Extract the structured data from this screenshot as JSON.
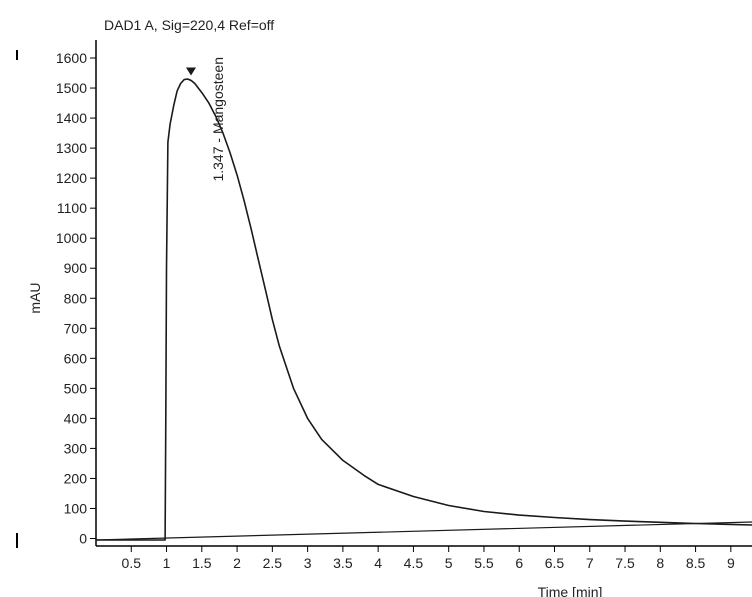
{
  "colors": {
    "trace": "#1a1a1a",
    "axis": "#000000",
    "text": "#222222",
    "background": "#ffffff"
  },
  "chart_data": {
    "type": "line",
    "title": "DAD1 A, Sig=220,4 Ref=off",
    "xlabel": "Time [min]",
    "ylabel": "mAU",
    "xlim": [
      0,
      9.3
    ],
    "ylim": [
      -25,
      1660
    ],
    "x_ticks": [
      0.5,
      1,
      1.5,
      2,
      2.5,
      3,
      3.5,
      4,
      4.5,
      5,
      5.5,
      6,
      6.5,
      7,
      7.5,
      8,
      8.5,
      9
    ],
    "x_tick_labels": [
      "0.5",
      "1",
      "1.5",
      "2",
      "2.5",
      "3",
      "3.5",
      "4",
      "4.5",
      "5",
      "5.5",
      "6",
      "6.5",
      "7",
      "7.5",
      "8",
      "8.5",
      "9"
    ],
    "y_ticks": [
      0,
      100,
      200,
      300,
      400,
      500,
      600,
      700,
      800,
      900,
      1000,
      1100,
      1200,
      1300,
      1400,
      1500,
      1600
    ],
    "y_tick_labels": [
      "0",
      "100",
      "200",
      "300",
      "400",
      "500",
      "600",
      "700",
      "800",
      "900",
      "1000",
      "1100",
      "1200",
      "1300",
      "1400",
      "1500",
      "1600"
    ],
    "grid": false,
    "series": [
      {
        "values_x": [
          0,
          0.5,
          0.98,
          0.99,
          1.0,
          1.02,
          1.05,
          1.1,
          1.15,
          1.2,
          1.25,
          1.3,
          1.35,
          1.4,
          1.5,
          1.6,
          1.7,
          1.8,
          1.9,
          2.0,
          2.1,
          2.2,
          2.3,
          2.4,
          2.5,
          2.6,
          2.8,
          3.0,
          3.2,
          3.5,
          3.8,
          4.0,
          4.5,
          5.0,
          5.5,
          6.0,
          6.5,
          7.0,
          7.5,
          8.0,
          8.5,
          9.0,
          9.3
        ],
        "values_y": [
          -5,
          -5,
          -5,
          400,
          900,
          1320,
          1380,
          1440,
          1490,
          1515,
          1528,
          1530,
          1525,
          1515,
          1485,
          1450,
          1405,
          1350,
          1285,
          1210,
          1125,
          1030,
          930,
          830,
          730,
          640,
          500,
          400,
          330,
          260,
          210,
          180,
          140,
          110,
          90,
          78,
          70,
          63,
          58,
          54,
          50,
          47,
          45
        ]
      }
    ],
    "baseline": {
      "x": [
        0,
        9.3
      ],
      "y": [
        -5,
        55
      ]
    },
    "annotations": [
      {
        "text": "1.347 - Mangosteen",
        "x": 1.347,
        "y": 1555
      }
    ]
  }
}
